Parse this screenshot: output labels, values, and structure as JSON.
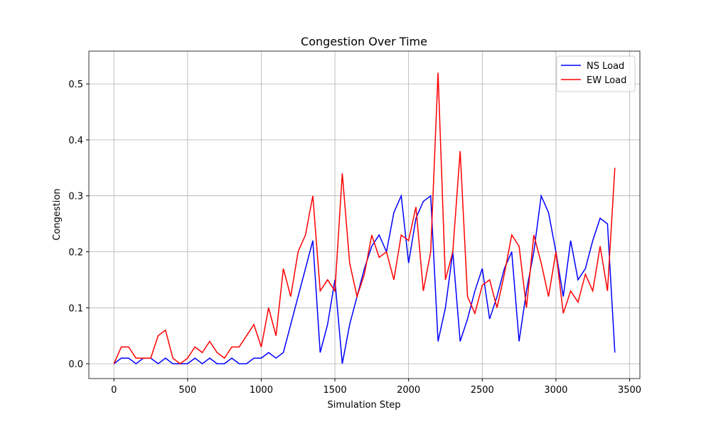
{
  "chart_data": {
    "type": "line",
    "title": "Congestion Over Time",
    "x_label": "Simulation Step",
    "y_label": "Congestion",
    "x": [
      0,
      50,
      100,
      150,
      200,
      250,
      300,
      350,
      400,
      450,
      500,
      550,
      600,
      650,
      700,
      750,
      800,
      850,
      900,
      950,
      1000,
      1050,
      1100,
      1150,
      1200,
      1250,
      1300,
      1350,
      1400,
      1450,
      1500,
      1550,
      1600,
      1650,
      1700,
      1750,
      1800,
      1850,
      1900,
      1950,
      2000,
      2050,
      2100,
      2150,
      2200,
      2250,
      2300,
      2350,
      2400,
      2450,
      2500,
      2550,
      2600,
      2650,
      2700,
      2750,
      2800,
      2850,
      2900,
      2950,
      3000,
      3050,
      3100,
      3150,
      3200,
      3250,
      3300,
      3350,
      3400
    ],
    "series": [
      {
        "name": "NS Load",
        "color": "#0000ff",
        "values": [
          0,
          0.01,
          0.01,
          0,
          0.01,
          0.01,
          0,
          0.01,
          0,
          0,
          0,
          0.01,
          0,
          0.01,
          0,
          0,
          0.01,
          0,
          0,
          0.01,
          0.01,
          0.02,
          0.01,
          0.02,
          0.07,
          0.12,
          0.17,
          0.22,
          0.02,
          0.07,
          0.15,
          0,
          0.07,
          0.12,
          0.17,
          0.21,
          0.23,
          0.2,
          0.27,
          0.3,
          0.18,
          0.26,
          0.29,
          0.3,
          0.04,
          0.1,
          0.2,
          0.04,
          0.08,
          0.13,
          0.17,
          0.08,
          0.12,
          0.17,
          0.2,
          0.04,
          0.13,
          0.2,
          0.3,
          0.27,
          0.2,
          0.12,
          0.22,
          0.15,
          0.17,
          0.22,
          0.26,
          0.25,
          0.02
        ]
      },
      {
        "name": "EW Load",
        "color": "#ff0000",
        "values": [
          0,
          0.03,
          0.03,
          0.01,
          0.01,
          0.01,
          0.05,
          0.06,
          0.01,
          0,
          0.01,
          0.03,
          0.02,
          0.04,
          0.02,
          0.01,
          0.03,
          0.03,
          0.05,
          0.07,
          0.03,
          0.1,
          0.05,
          0.17,
          0.12,
          0.2,
          0.23,
          0.3,
          0.13,
          0.15,
          0.13,
          0.34,
          0.18,
          0.12,
          0.16,
          0.23,
          0.19,
          0.2,
          0.15,
          0.23,
          0.22,
          0.28,
          0.13,
          0.2,
          0.52,
          0.15,
          0.2,
          0.38,
          0.12,
          0.09,
          0.14,
          0.15,
          0.1,
          0.16,
          0.23,
          0.21,
          0.1,
          0.23,
          0.18,
          0.12,
          0.2,
          0.09,
          0.13,
          0.11,
          0.16,
          0.13,
          0.21,
          0.13,
          0.35
        ]
      }
    ],
    "xlim": [
      -170,
      3570
    ],
    "ylim": [
      -0.0265,
      0.5585
    ],
    "xticks": [
      0,
      500,
      1000,
      1500,
      2000,
      2500,
      3000,
      3500
    ],
    "yticks": [
      {
        "value": 0,
        "label": "0.0"
      },
      0.1,
      0.2,
      0.3,
      0.4,
      0.5
    ],
    "grid": true,
    "legend": "upper right"
  }
}
